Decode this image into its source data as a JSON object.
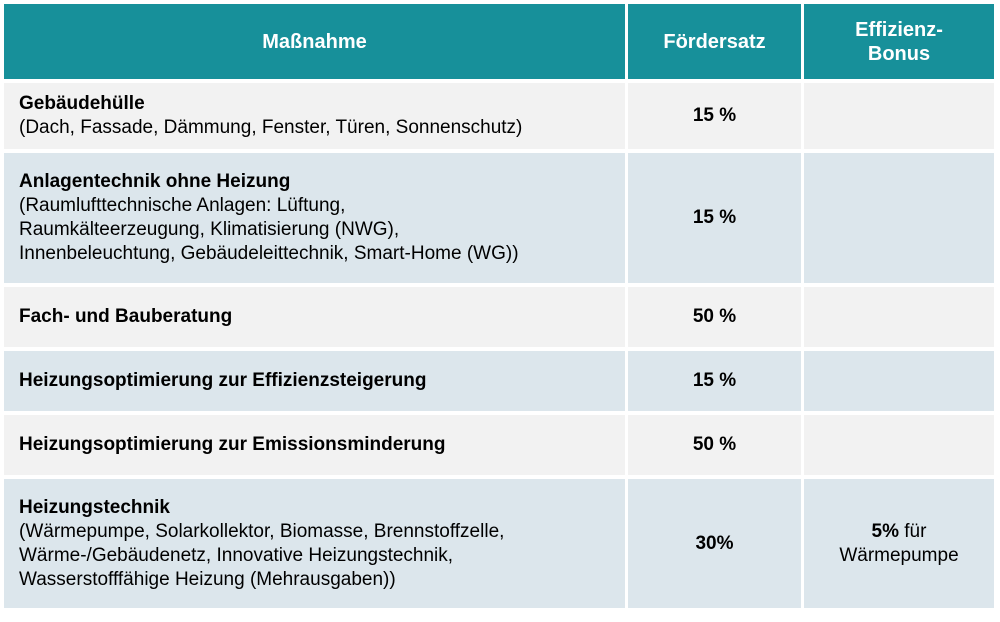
{
  "table": {
    "header": [
      "Maßnahme",
      "Fördersatz",
      [
        "Effizienz-",
        "Bonus"
      ]
    ],
    "rows": [
      {
        "title": "Gebäudehülle",
        "detail": [
          "(Dach, Fassade, Dämmung, Fenster, Türen, Sonnenschutz)"
        ],
        "rate": "15 %"
      },
      {
        "title": "Anlagentechnik ohne Heizung",
        "detail": [
          "(Raumlufttechnische Anlagen: Lüftung,",
          "Raumkälteerzeugung, Klimatisierung (NWG),",
          "Innenbeleuchtung, Gebäudeleittechnik, Smart-Home (WG))"
        ],
        "rate": "15 %"
      },
      {
        "title": "Fach- und Bauberatung",
        "rate": "50 %"
      },
      {
        "title": "Heizungsoptimierung zur Effizienzsteigerung",
        "rate": "15 %"
      },
      {
        "title": "Heizungsoptimierung zur Emissionsminderung",
        "rate": "50 %"
      },
      {
        "title": "Heizungstechnik",
        "detail": [
          "(Wärmepumpe, Solarkollektor, Biomasse, Brennstoffzelle,",
          "Wärme-/Gebäudenetz, Innovative Heizungstechnik,",
          "Wasserstofffähige Heizung (Mehrausgaben))"
        ],
        "rate": "30%",
        "bonus": {
          "bold": "5%",
          "text": [
            "für",
            "Wärmepumpe"
          ]
        }
      }
    ]
  }
}
